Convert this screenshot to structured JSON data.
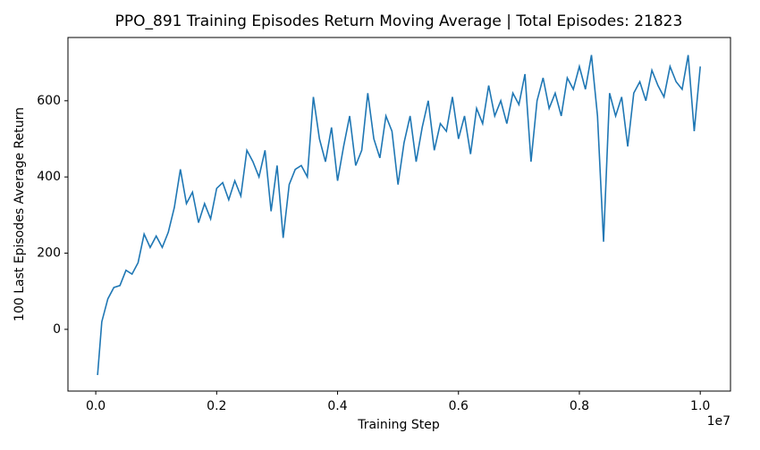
{
  "chart_data": {
    "type": "line",
    "title": "PPO_891 Training Episodes Return Moving Average | Total Episodes: 21823",
    "x_label": "Training Step",
    "y_label": "100 Last Episodes Average Return",
    "x_offset_label": "1e7",
    "x": [
      0.003,
      0.01,
      0.02,
      0.03,
      0.04,
      0.05,
      0.06,
      0.07,
      0.08,
      0.09,
      0.1,
      0.11,
      0.12,
      0.13,
      0.14,
      0.15,
      0.16,
      0.17,
      0.18,
      0.19,
      0.2,
      0.21,
      0.22,
      0.23,
      0.24,
      0.25,
      0.26,
      0.27,
      0.28,
      0.29,
      0.3,
      0.31,
      0.32,
      0.33,
      0.34,
      0.35,
      0.36,
      0.37,
      0.38,
      0.39,
      0.4,
      0.41,
      0.42,
      0.43,
      0.44,
      0.45,
      0.46,
      0.47,
      0.48,
      0.49,
      0.5,
      0.51,
      0.52,
      0.53,
      0.54,
      0.55,
      0.56,
      0.57,
      0.58,
      0.59,
      0.6,
      0.61,
      0.62,
      0.63,
      0.64,
      0.65,
      0.66,
      0.67,
      0.68,
      0.69,
      0.7,
      0.71,
      0.72,
      0.73,
      0.74,
      0.75,
      0.76,
      0.77,
      0.78,
      0.79,
      0.8,
      0.81,
      0.82,
      0.83,
      0.84,
      0.85,
      0.86,
      0.87,
      0.88,
      0.89,
      0.9,
      0.91,
      0.92,
      0.93,
      0.94,
      0.95,
      0.96,
      0.97,
      0.98,
      0.99,
      1.0
    ],
    "series": [
      {
        "color": "#1f77b4",
        "values": [
          -120,
          20,
          80,
          110,
          115,
          155,
          145,
          175,
          250,
          215,
          245,
          215,
          255,
          320,
          420,
          330,
          360,
          280,
          330,
          290,
          370,
          385,
          340,
          390,
          350,
          470,
          440,
          400,
          470,
          310,
          430,
          240,
          380,
          420,
          430,
          400,
          610,
          500,
          440,
          530,
          390,
          480,
          560,
          430,
          470,
          620,
          500,
          450,
          560,
          520,
          380,
          490,
          560,
          440,
          530,
          600,
          470,
          540,
          520,
          610,
          500,
          560,
          460,
          580,
          540,
          640,
          560,
          600,
          540,
          620,
          590,
          670,
          440,
          600,
          660,
          580,
          620,
          560,
          660,
          630,
          690,
          630,
          720,
          560,
          230,
          620,
          560,
          610,
          480,
          620,
          650,
          600,
          680,
          640,
          610,
          690,
          650,
          630,
          720,
          520,
          690
        ]
      }
    ],
    "xlim": [
      -0.046,
      1.05
    ],
    "ylim": [
      -162,
      766
    ],
    "xticks": [
      {
        "value": 0,
        "label": "0.0"
      },
      0.2,
      0.4,
      0.6,
      0.8,
      {
        "value": 1,
        "label": "1.0"
      }
    ],
    "yticks": [
      0,
      200,
      400,
      600
    ]
  }
}
